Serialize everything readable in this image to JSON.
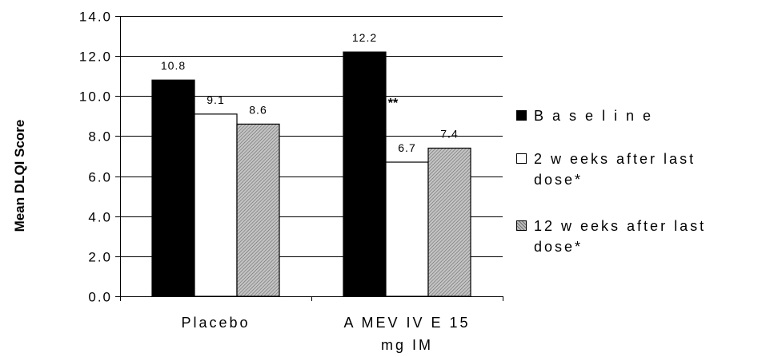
{
  "chart_data": {
    "type": "bar",
    "ylabel": "Mean DLQI Score",
    "xlabel": "",
    "ylim": [
      0,
      14
    ],
    "yticks": [
      "0.0",
      "2.0",
      "4.0",
      "6.0",
      "8.0",
      "10.0",
      "12.0",
      "14.0"
    ],
    "categories": [
      "Placebo",
      "AMEVIVE 15 mg IM"
    ],
    "category_lines": [
      [
        "Placebo"
      ],
      [
        "A MEV IV E 15",
        "mg IM"
      ]
    ],
    "series": [
      {
        "name": "Baseline",
        "values": [
          10.8,
          12.2
        ],
        "labels": [
          "10.8",
          "12.2"
        ],
        "fill": "solid"
      },
      {
        "name": "2 weeks after last dose*",
        "values": [
          9.1,
          6.7
        ],
        "labels": [
          "9.1",
          "6.7"
        ],
        "fill": "white"
      },
      {
        "name": "12 weeks after last dose*",
        "values": [
          8.6,
          7.4
        ],
        "labels": [
          "8.6",
          "7.4"
        ],
        "fill": "hatched"
      }
    ],
    "annotation": "**",
    "grid": true,
    "legend_position": "right",
    "colors": {
      "solid": "#000000",
      "white": "#ffffff",
      "hatched": "#bdbdbd",
      "gridline": "#000000"
    }
  },
  "legend": [
    {
      "lines": [
        "B a s e l i n e"
      ]
    },
    {
      "lines": [
        "2  w eeks after last",
        "dose*"
      ]
    },
    {
      "lines": [
        "12  w eeks after last",
        "dose*"
      ]
    }
  ]
}
